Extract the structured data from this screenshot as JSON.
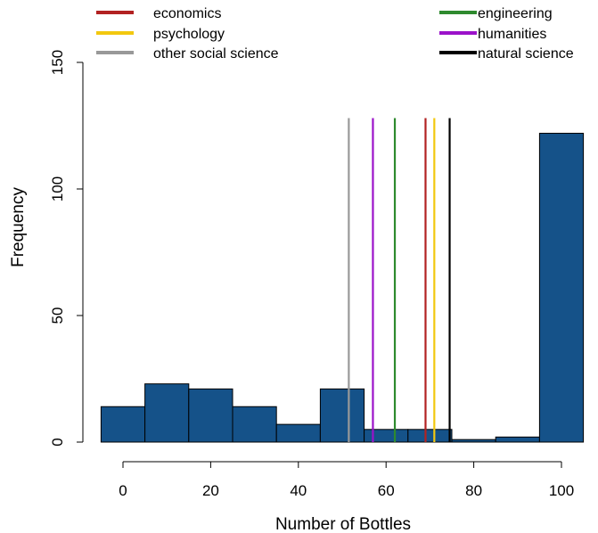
{
  "chart_data": {
    "type": "bar",
    "title": "",
    "xlabel": "Number of Bottles",
    "ylabel": "Frequency",
    "xlim": [
      -5,
      105
    ],
    "ylim": [
      0,
      150
    ],
    "x_ticks": [
      0,
      20,
      40,
      60,
      80,
      100
    ],
    "y_ticks": [
      0,
      50,
      100,
      150
    ],
    "grid": false,
    "bar_color": "#155289",
    "bins": [
      {
        "start": -5,
        "end": 5,
        "value": 14
      },
      {
        "start": 5,
        "end": 15,
        "value": 23
      },
      {
        "start": 15,
        "end": 25,
        "value": 21
      },
      {
        "start": 25,
        "end": 35,
        "value": 14
      },
      {
        "start": 35,
        "end": 45,
        "value": 7
      },
      {
        "start": 45,
        "end": 55,
        "value": 21
      },
      {
        "start": 55,
        "end": 65,
        "value": 5
      },
      {
        "start": 65,
        "end": 75,
        "value": 5
      },
      {
        "start": 75,
        "end": 85,
        "value": 1
      },
      {
        "start": 85,
        "end": 95,
        "value": 2
      },
      {
        "start": 95,
        "end": 105,
        "value": 122
      }
    ],
    "reference_lines": [
      {
        "name": "other social science",
        "x": 51.5,
        "color": "#999999"
      },
      {
        "name": "humanities",
        "x": 57,
        "color": "#9B12C9"
      },
      {
        "name": "engineering",
        "x": 62,
        "color": "#2E8A2E"
      },
      {
        "name": "economics",
        "x": 69,
        "color": "#B22222"
      },
      {
        "name": "psychology",
        "x": 71,
        "color": "#F2C80F"
      },
      {
        "name": "natural science",
        "x": 74.5,
        "color": "#000000"
      }
    ],
    "reference_line_top": 128,
    "legend": {
      "position": "top",
      "columns": [
        [
          {
            "label": "economics",
            "color": "#B22222"
          },
          {
            "label": "psychology",
            "color": "#F2C80F"
          },
          {
            "label": "other social science",
            "color": "#999999"
          }
        ],
        [
          {
            "label": "engineering",
            "color": "#2E8A2E"
          },
          {
            "label": "humanities",
            "color": "#9B12C9"
          },
          {
            "label": "natural science",
            "color": "#000000"
          }
        ]
      ]
    }
  }
}
